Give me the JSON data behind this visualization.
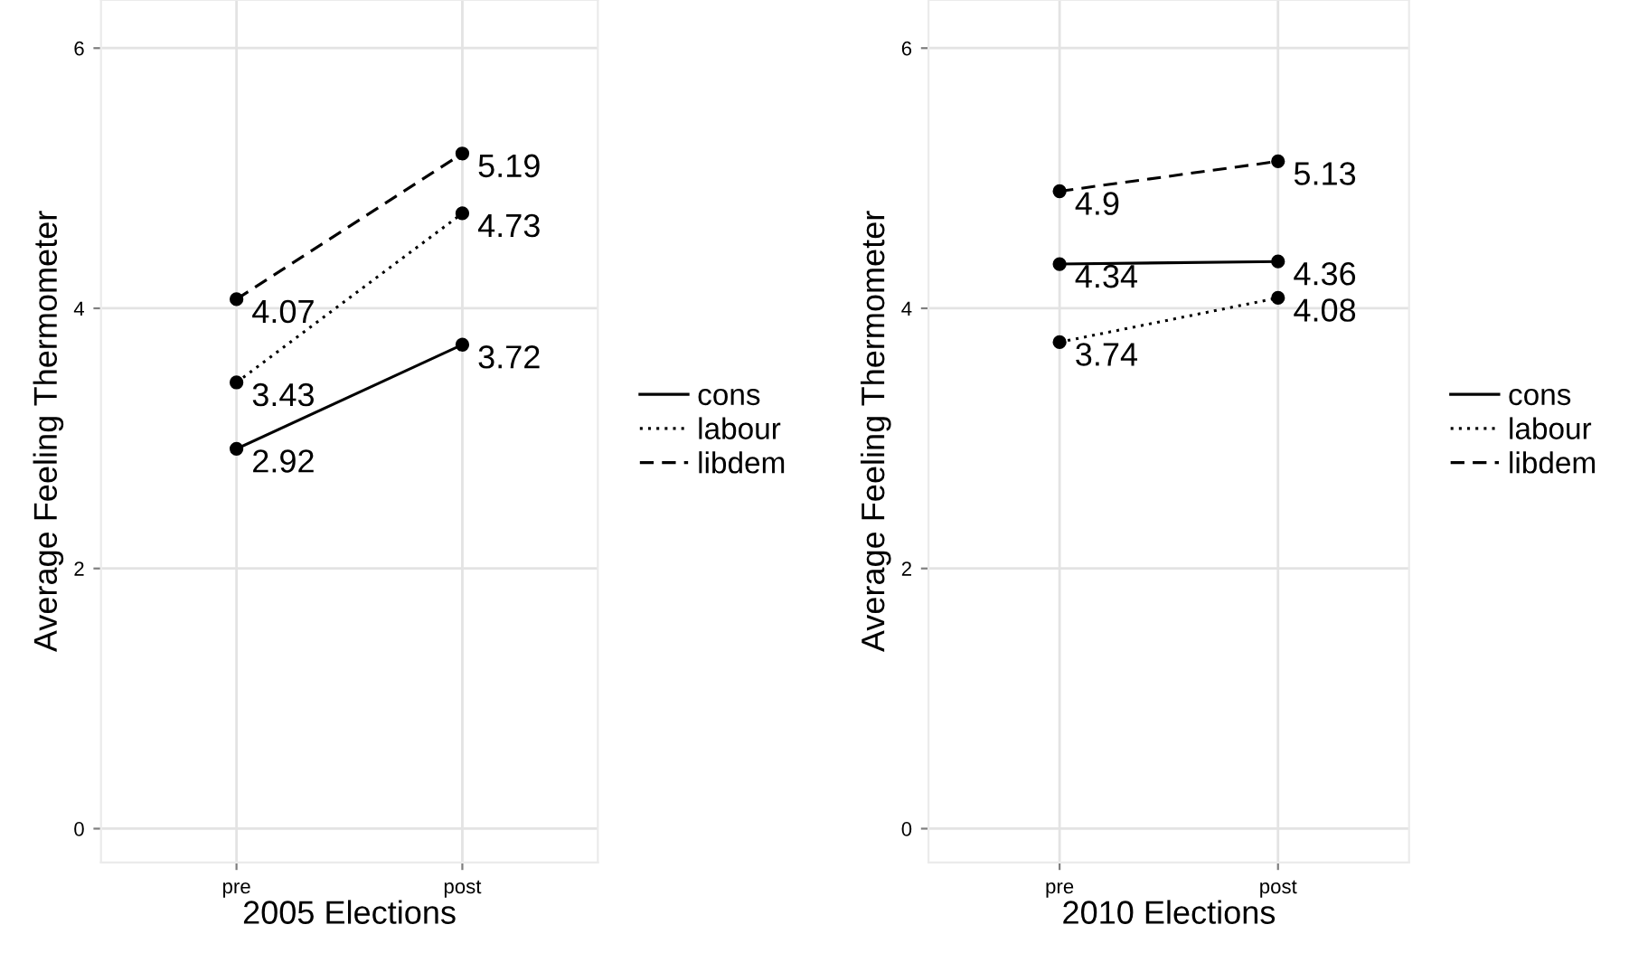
{
  "chart_data": [
    {
      "type": "line",
      "categories": [
        "pre",
        "post"
      ],
      "xlabel": "2005 Elections",
      "ylabel": "Average Feeling Thermometer",
      "ylim": [
        -0.26,
        6.37
      ],
      "yticks": [
        0,
        2,
        4,
        6
      ],
      "grid": true,
      "legend": "right",
      "marker": "circle",
      "data_labels": true,
      "series": [
        {
          "name": "cons",
          "color": "#000000",
          "line_style": "solid",
          "values": [
            2.92,
            3.72
          ]
        },
        {
          "name": "labour",
          "color": "#000000",
          "line_style": "dotted",
          "values": [
            3.43,
            4.73
          ]
        },
        {
          "name": "libdem",
          "color": "#000000",
          "line_style": "dashed",
          "values": [
            4.07,
            5.19
          ]
        }
      ]
    },
    {
      "type": "line",
      "categories": [
        "pre",
        "post"
      ],
      "xlabel": "2010 Elections",
      "ylabel": "Average Feeling Thermometer",
      "ylim": [
        -0.26,
        6.37
      ],
      "yticks": [
        0,
        2,
        4,
        6
      ],
      "grid": true,
      "legend": "right",
      "marker": "circle",
      "data_labels": true,
      "series": [
        {
          "name": "cons",
          "color": "#000000",
          "line_style": "solid",
          "values": [
            4.34,
            4.36
          ]
        },
        {
          "name": "labour",
          "color": "#000000",
          "line_style": "dotted",
          "values": [
            3.74,
            4.08
          ]
        },
        {
          "name": "libdem",
          "color": "#000000",
          "line_style": "dashed",
          "values": [
            4.9,
            5.13
          ]
        }
      ]
    }
  ]
}
